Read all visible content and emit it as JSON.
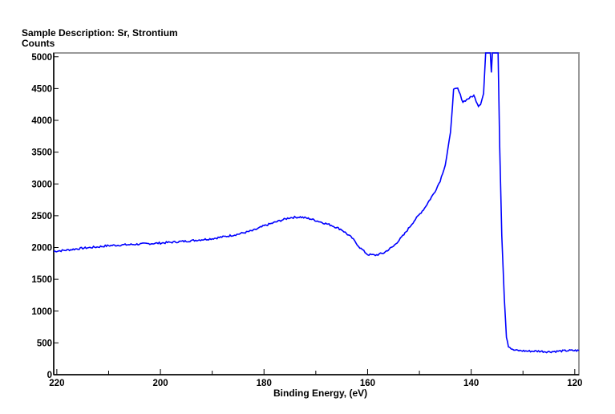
{
  "header": {
    "sample_description": "Sample Description:  Sr, Strontium"
  },
  "chart_data": {
    "type": "line",
    "title": "",
    "xlabel": "Binding Energy, (eV)",
    "ylabel": "Counts",
    "xlim": [
      220.6,
      119.2
    ],
    "ylim": [
      0,
      5060
    ],
    "x_reversed": true,
    "grid": false,
    "xticks": [
      220,
      200,
      180,
      160,
      140,
      120
    ],
    "xminor": [
      210,
      190,
      170,
      150,
      130
    ],
    "yticks": [
      0,
      500,
      1000,
      1500,
      2000,
      2500,
      3000,
      3500,
      4000,
      4500,
      5000
    ],
    "series_color": "#0000ff",
    "series": [
      {
        "x": [
          220.6,
          218,
          215,
          212,
          210,
          205,
          200,
          195,
          190,
          187,
          185,
          182,
          180,
          177,
          175,
          173,
          171,
          169,
          167,
          165,
          163,
          161.5,
          160,
          158.5,
          157,
          155,
          153,
          151,
          149,
          147,
          146,
          145,
          144,
          143.4,
          142.6,
          141.6,
          140.6,
          139.5,
          138.6,
          138.2,
          137.6,
          137.2,
          136.9,
          136.3,
          136.1,
          135.9,
          135.3,
          134.8,
          134.5,
          134.1,
          133.6,
          133.2,
          132.8,
          132,
          131,
          129,
          127,
          125,
          123,
          121,
          119.2
        ],
        "y": [
          1940,
          1960,
          1990,
          2010,
          2030,
          2050,
          2070,
          2100,
          2140,
          2180,
          2210,
          2270,
          2340,
          2420,
          2470,
          2480,
          2450,
          2400,
          2350,
          2280,
          2150,
          2000,
          1890,
          1880,
          1910,
          2020,
          2200,
          2420,
          2620,
          2880,
          3050,
          3300,
          3800,
          4480,
          4500,
          4290,
          4340,
          4390,
          4230,
          4260,
          4420,
          5060,
          5060,
          5060,
          4740,
          5060,
          5060,
          5060,
          3600,
          2200,
          1200,
          600,
          450,
          390,
          380,
          370,
          370,
          360,
          370,
          380,
          380
        ]
      }
    ]
  }
}
